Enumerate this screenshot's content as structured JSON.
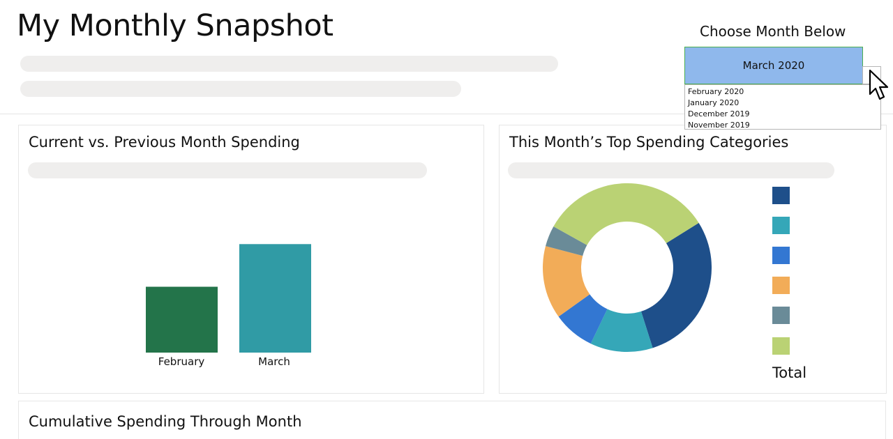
{
  "header": {
    "title": "My Monthly Snapshot"
  },
  "month_picker": {
    "label": "Choose Month Below",
    "selected": "March 2020",
    "options": [
      "February 2020",
      "January 2020",
      "December 2019",
      "November 2019"
    ]
  },
  "cards": {
    "comparison": {
      "title": "Current vs. Previous Month Spending",
      "chart_data": {
        "type": "bar",
        "categories": [
          "February",
          "March"
        ],
        "values": [
          105,
          173
        ],
        "colors": [
          "#23744a",
          "#309ba5"
        ],
        "xlabel": "",
        "ylabel": "",
        "ylim": [
          0,
          240
        ],
        "grid": false
      }
    },
    "categories": {
      "title": "This Month’s Top Spending Categories",
      "chart_data": {
        "type": "pie",
        "donut": true,
        "values": [
          29,
          12,
          8,
          14,
          4,
          33
        ],
        "colors": [
          "#1e4f8a",
          "#35a7b8",
          "#3377d2",
          "#f2ac58",
          "#6a8b98",
          "#bad274"
        ],
        "legend_position": "right",
        "legend_total_label": "Total"
      }
    },
    "cumulative": {
      "title": "Cumulative Spending Through Month"
    }
  },
  "icons": {
    "cursor": "mouse-pointer-icon",
    "dropdown": "dropdown-arrow-icon"
  }
}
